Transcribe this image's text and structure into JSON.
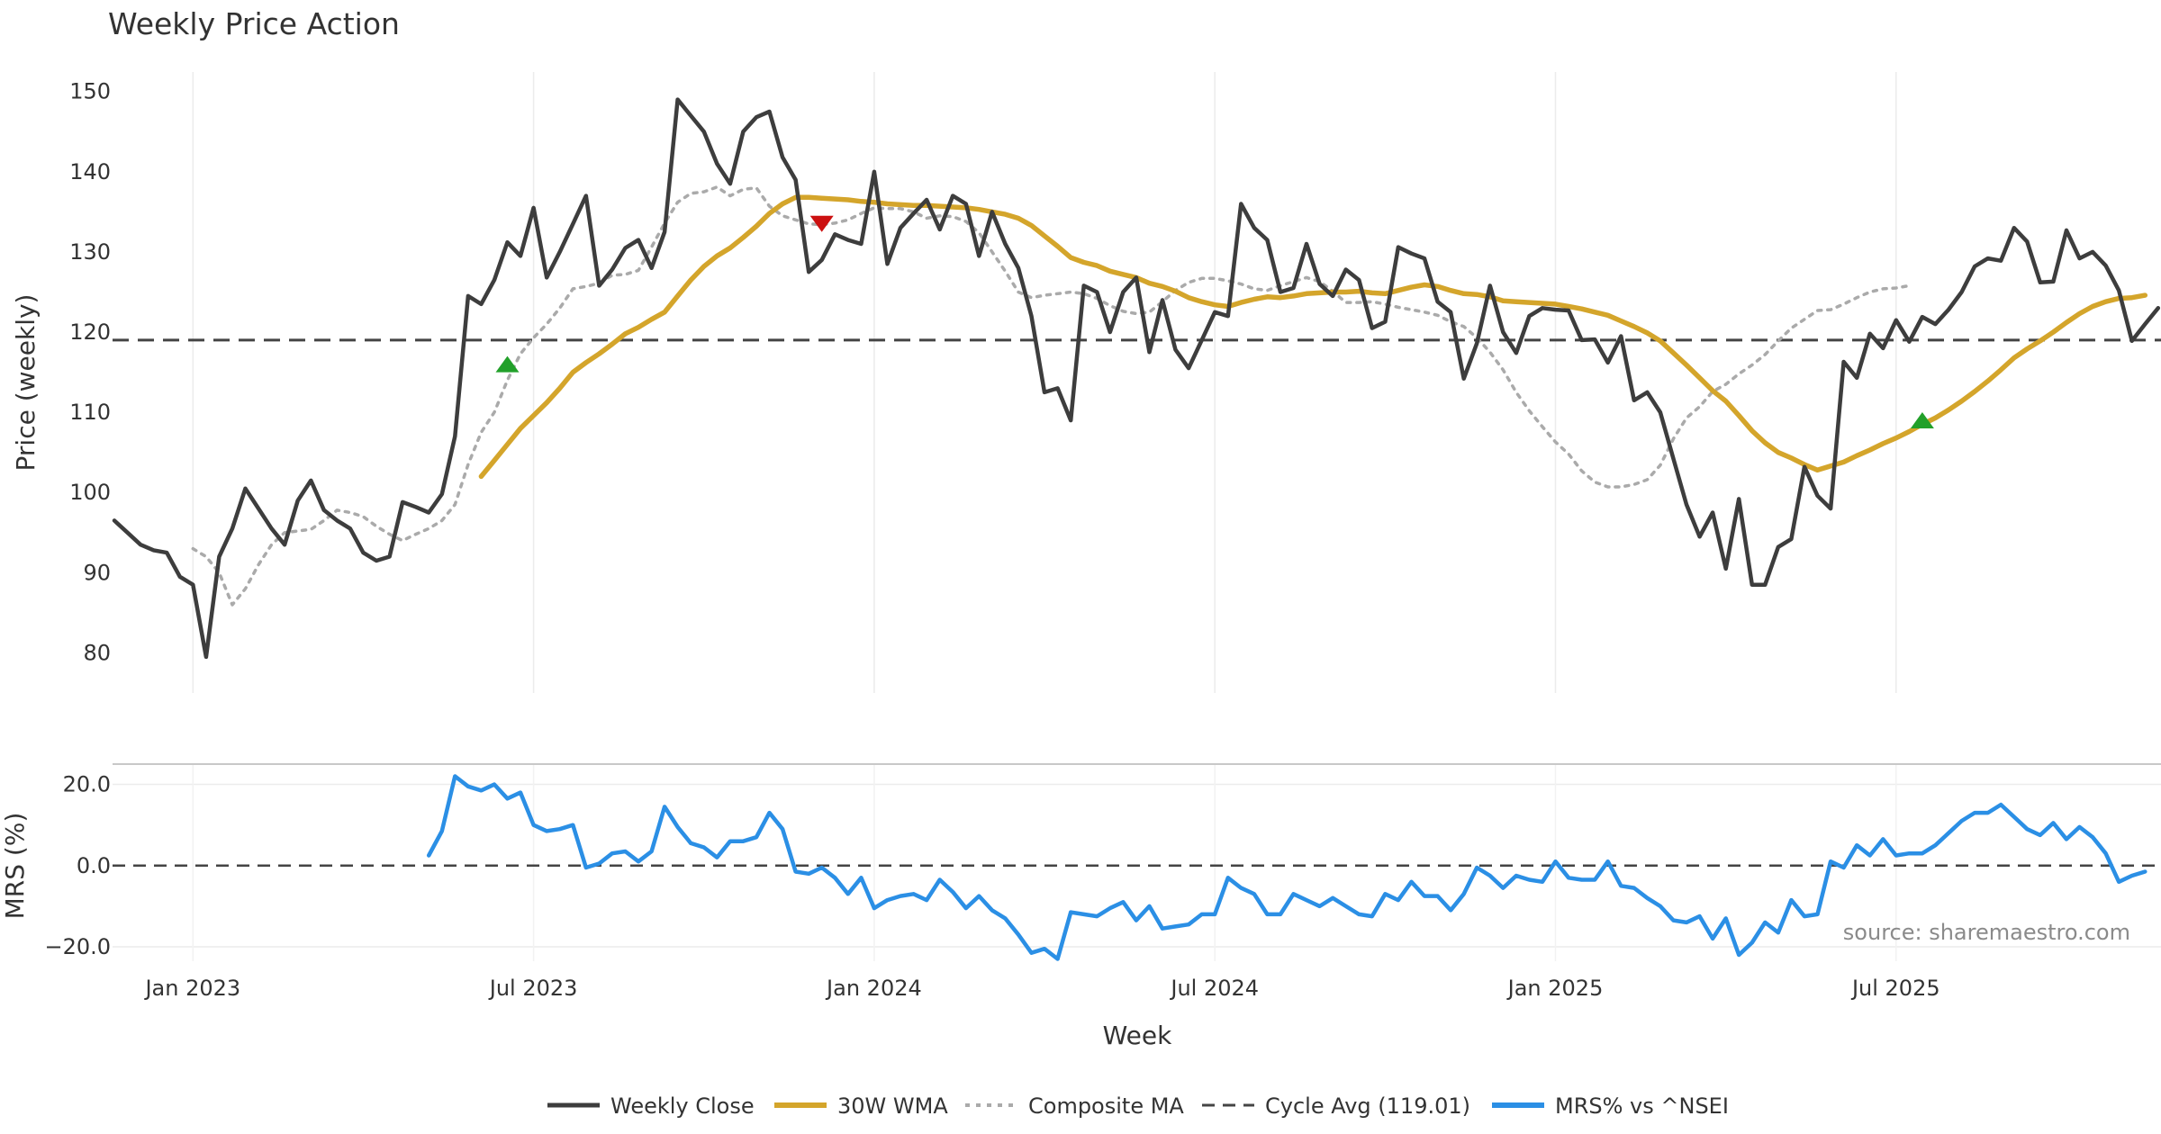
{
  "chart_data": {
    "type": "line",
    "title": "Weekly Price Action",
    "xlabel": "Week",
    "x_ticks": [
      "Jan 2023",
      "Jul 2023",
      "Jan 2024",
      "Jul 2024",
      "Jan 2025",
      "Jul 2025"
    ],
    "source": "source: sharemaestro.com",
    "legend_position": "bottom-center",
    "legend": [
      "Weekly Close",
      "30W WMA",
      "Composite MA",
      "Cycle Avg (119.01)",
      "MRS% vs ^NSEI"
    ],
    "price_panel": {
      "ylabel": "Price (weekly)",
      "yticks": [
        "80",
        "90",
        "100",
        "110",
        "120",
        "130",
        "140",
        "150"
      ],
      "ylim": [
        75,
        153
      ],
      "cycle_avg": 119.01,
      "series": [
        {
          "name": "Weekly Close",
          "color": "#3d3d3d",
          "start_week": 0,
          "values": [
            96.5,
            95,
            93.5,
            92.8,
            92.5,
            89.5,
            88.5,
            79.5,
            92,
            95.5,
            100.5,
            98,
            95.5,
            93.5,
            99,
            101.5,
            97.8,
            96.5,
            95.5,
            92.5,
            91.5,
            92,
            98.8,
            98.2,
            97.5,
            99.8,
            107,
            124.5,
            123.5,
            126.5,
            131.2,
            129.5,
            135.5,
            126.8,
            130,
            133.5,
            137,
            125.8,
            127.8,
            130.5,
            131.5,
            128,
            132.5,
            149,
            147,
            145,
            141,
            138.5,
            145,
            146.8,
            147.5,
            141.8,
            139,
            127.5,
            129,
            132.2,
            131.5,
            131,
            140,
            128.5,
            133,
            134.8,
            136.5,
            132.8,
            137,
            136,
            129.5,
            135,
            131,
            128,
            122,
            112.5,
            113,
            109,
            125.8,
            125,
            120,
            125,
            126.8,
            117.5,
            124,
            117.8,
            115.5,
            119,
            122.5,
            122,
            136,
            133,
            131.5,
            125,
            125.5,
            131,
            126,
            124.5,
            127.8,
            126.5,
            120.5,
            121.3,
            130.6,
            129.8,
            129.2,
            123.8,
            122.5,
            114.2,
            118.6,
            125.8,
            120,
            117.4,
            122,
            123,
            122.8,
            122.7,
            119,
            119.1,
            116.2,
            119.5,
            111.5,
            112.5,
            110,
            104.2,
            98.5,
            94.5,
            97.5,
            90.5,
            99.2,
            88.5,
            88.5,
            93.2,
            94.2,
            103.2,
            99.6,
            98,
            116.3,
            114.3,
            119.8,
            118,
            121.5,
            118.8,
            121.9,
            121,
            122.8,
            125,
            128.2,
            129.2,
            128.9,
            133,
            131.3,
            126.2,
            126.3,
            132.7,
            129.2,
            130,
            128.3,
            125.2,
            118.9,
            121,
            123
          ]
        },
        {
          "name": "30W WMA",
          "color": "#d4a52b",
          "start_week": 28,
          "values": [
            102,
            104,
            106,
            108,
            109.6,
            111.2,
            113,
            115,
            116.2,
            117.3,
            118.5,
            119.8,
            120.6,
            121.6,
            122.5,
            124.5,
            126.5,
            128.2,
            129.5,
            130.5,
            131.8,
            133.2,
            134.8,
            136,
            136.8,
            136.8,
            136.7,
            136.6,
            136.5,
            136.3,
            136.2,
            136,
            135.9,
            135.8,
            135.8,
            135.7,
            135.6,
            135.5,
            135.3,
            135,
            134.7,
            134.2,
            133.3,
            132,
            130.7,
            129.3,
            128.7,
            128.3,
            127.6,
            127.2,
            126.8,
            126.1,
            125.7,
            125.1,
            124.3,
            123.8,
            123.4,
            123.2,
            123.7,
            124.1,
            124.4,
            124.3,
            124.5,
            124.8,
            124.9,
            125,
            125,
            125.1,
            124.9,
            124.8,
            125.2,
            125.6,
            125.9,
            125.7,
            125.2,
            124.8,
            124.7,
            124.4,
            123.9,
            123.8,
            123.7,
            123.6,
            123.5,
            123.2,
            122.9,
            122.5,
            122.1,
            121.4,
            120.7,
            119.9,
            118.9,
            117.4,
            115.9,
            114.3,
            112.7,
            111.4,
            109.6,
            107.7,
            106.2,
            105,
            104.3,
            103.5,
            102.8,
            103.3,
            103.8,
            104.6,
            105.3,
            106.1,
            106.8,
            107.6,
            108.5,
            109.3,
            110.3,
            111.4,
            112.6,
            113.9,
            115.3,
            116.8,
            117.9,
            118.9,
            120,
            121.2,
            122.3,
            123.2,
            123.8,
            124.2,
            124.3,
            124.6
          ]
        },
        {
          "name": "Composite MA",
          "color": "#aaaaaa",
          "start_week": 6,
          "values": [
            93,
            92,
            90,
            86,
            88,
            91,
            93.5,
            95,
            95.2,
            95.4,
            96.5,
            97.8,
            97.5,
            97,
            95.8,
            94.8,
            94,
            94.8,
            95.5,
            96.5,
            98.5,
            103.5,
            107.5,
            110,
            114,
            117.3,
            119.3,
            121,
            123,
            125.4,
            125.7,
            126.1,
            127.1,
            127.2,
            127.7,
            130.6,
            133.6,
            136.2,
            137.3,
            137.5,
            138.1,
            137,
            137.8,
            138,
            135.7,
            134.5,
            134,
            133.5,
            133.4,
            133.6,
            134,
            134.8,
            135.5,
            135.4,
            135.4,
            135,
            134.2,
            134.5,
            134.4,
            133.8,
            132.4,
            130,
            127.6,
            125,
            124.3,
            124.6,
            124.8,
            125,
            124.8,
            124.2,
            123.3,
            122.6,
            122.3,
            122.5,
            123.8,
            125.2,
            126.2,
            126.7,
            126.7,
            126.4,
            126,
            125.4,
            125.2,
            125.8,
            126.3,
            126.8,
            126.3,
            125.1,
            123.7,
            123.7,
            123.8,
            123.5,
            123.1,
            122.8,
            122.5,
            122.1,
            121.3,
            120.7,
            119.3,
            117.5,
            115.3,
            112.5,
            110.2,
            108.2,
            106.3,
            104.8,
            102.7,
            101.3,
            100.7,
            100.7,
            101,
            101.6,
            103.4,
            106.7,
            109.3,
            110.7,
            112.6,
            113.5,
            114.8,
            115.9,
            117.2,
            118.9,
            120.5,
            121.6,
            122.7,
            122.8,
            123.5,
            124.3,
            125,
            125.4,
            125.5,
            125.8
          ]
        }
      ],
      "signals": [
        {
          "type": "buy",
          "marker": "up-triangle",
          "color": "#22a02a",
          "week": 30,
          "value": 116
        },
        {
          "type": "sell",
          "marker": "down-triangle",
          "color": "#cc1111",
          "week": 54,
          "value": 133.5
        },
        {
          "type": "buy",
          "marker": "up-triangle",
          "color": "#22a02a",
          "week": 138,
          "value": 109
        }
      ]
    },
    "mrs_panel": {
      "ylabel": "MRS (%)",
      "yticks": [
        "20.0",
        "0.0",
        "−20.0"
      ],
      "ylim": [
        -24,
        25
      ],
      "series": [
        {
          "name": "MRS% vs ^NSEI",
          "color": "#2b8fe5",
          "start_week": 24,
          "values": [
            2.5,
            8.5,
            22,
            19.5,
            18.5,
            20,
            16.5,
            18,
            10,
            8.5,
            9,
            10,
            -0.5,
            0.5,
            3,
            3.5,
            1,
            3.5,
            14.5,
            9.5,
            5.5,
            4.5,
            2,
            6,
            6,
            7,
            13,
            9,
            -1.5,
            -2,
            -0.5,
            -3,
            -7,
            -3,
            -10.5,
            -8.5,
            -7.5,
            -7,
            -8.5,
            -3.5,
            -6.5,
            -10.5,
            -7.5,
            -11,
            -13,
            -17,
            -21.5,
            -20.5,
            -23,
            -11.5,
            -12,
            -12.5,
            -10.5,
            -9,
            -13.5,
            -10,
            -15.5,
            -15,
            -14.5,
            -12,
            -12,
            -3,
            -5.5,
            -7,
            -12,
            -12,
            -7,
            -8.5,
            -10,
            -8,
            -10,
            -12,
            -12.5,
            -7,
            -8.5,
            -4,
            -7.5,
            -7.5,
            -11,
            -7,
            -0.5,
            -2.5,
            -5.5,
            -2.5,
            -3.5,
            -4,
            1,
            -3,
            -3.5,
            -3.5,
            1,
            -5,
            -5.5,
            -8,
            -10,
            -13.5,
            -14,
            -12.5,
            -18,
            -13,
            -22,
            -19,
            -14,
            -16.5,
            -8.5,
            -12.5,
            -12,
            1,
            -0.5,
            5,
            2.5,
            6.5,
            2.5,
            3,
            3,
            5,
            8,
            11,
            13,
            13,
            15,
            12,
            9,
            7.5,
            10.5,
            6.5,
            9.5,
            7,
            3,
            -4,
            -2.5,
            -1.5
          ]
        }
      ]
    }
  }
}
